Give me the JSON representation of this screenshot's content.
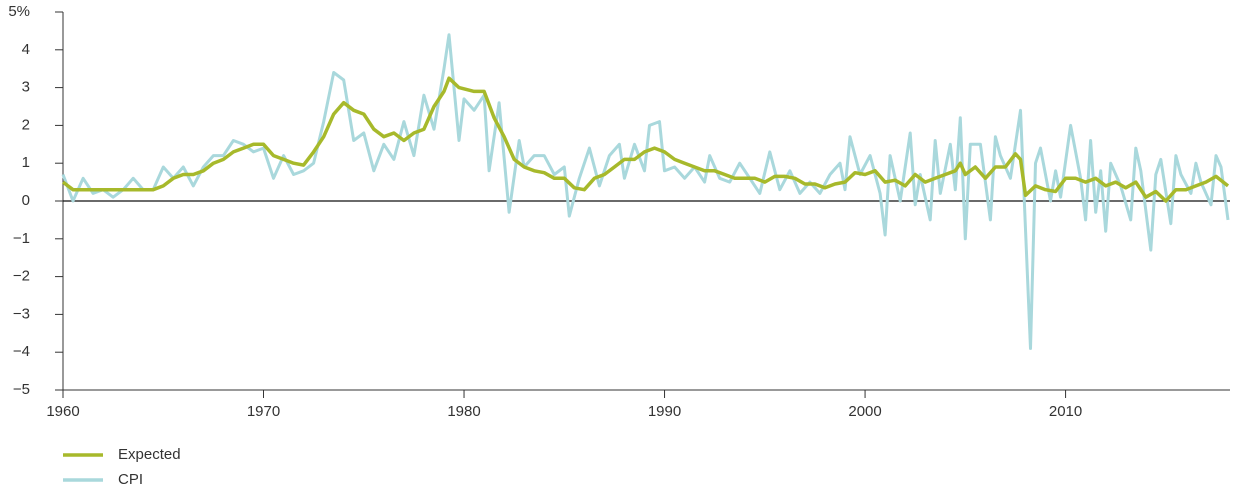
{
  "chart_data": {
    "type": "line",
    "xlim": [
      1960,
      2018.2
    ],
    "xticks": [
      1960,
      1970,
      1980,
      1990,
      2000,
      2010
    ],
    "ylim": [
      -5,
      5
    ],
    "yticks": [
      {
        "value": -5,
        "label": "−5"
      },
      {
        "value": -4,
        "label": "−4"
      },
      {
        "value": -3,
        "label": "−3"
      },
      {
        "value": -2,
        "label": "−2"
      },
      {
        "value": -1,
        "label": "−1"
      },
      0,
      1,
      2,
      3,
      4,
      {
        "value": 5,
        "label": "5%"
      }
    ],
    "legend": "bottom-left",
    "series": [
      {
        "name": "CPI",
        "color": "#a9d8dc",
        "x": [
          1960,
          1960.5,
          1961,
          1961.5,
          1962,
          1962.5,
          1963,
          1963.5,
          1964,
          1964.5,
          1965,
          1965.5,
          1966,
          1966.5,
          1967,
          1967.5,
          1968,
          1968.5,
          1969,
          1969.5,
          1970,
          1970.5,
          1971,
          1971.5,
          1972,
          1972.5,
          1973,
          1973.5,
          1974,
          1974.5,
          1975,
          1975.5,
          1976,
          1976.5,
          1977,
          1977.5,
          1978,
          1978.5,
          1979,
          1979.25,
          1979.75,
          1980,
          1980.5,
          1981,
          1981.25,
          1981.75,
          1982.25,
          1982.75,
          1983,
          1983.5,
          1984,
          1984.5,
          1985,
          1985.25,
          1985.75,
          1986.25,
          1986.75,
          1987.25,
          1987.75,
          1988,
          1988.5,
          1989,
          1989.25,
          1989.75,
          1990,
          1990.5,
          1991,
          1991.5,
          1992,
          1992.25,
          1992.75,
          1993.25,
          1993.75,
          1994.25,
          1994.75,
          1995.25,
          1995.75,
          1996.25,
          1996.75,
          1997.25,
          1997.75,
          1998.25,
          1998.75,
          1999,
          1999.25,
          1999.75,
          2000.25,
          2000.75,
          2001,
          2001.25,
          2001.75,
          2002.25,
          2002.5,
          2002.75,
          2003.25,
          2003.5,
          2003.75,
          2004.25,
          2004.5,
          2004.75,
          2005,
          2005.25,
          2005.75,
          2006.25,
          2006.5,
          2006.75,
          2007.25,
          2007.75,
          2008.25,
          2008.5,
          2008.75,
          2009.25,
          2009.5,
          2009.75,
          2010.25,
          2010.75,
          2011,
          2011.25,
          2011.5,
          2011.75,
          2012,
          2012.25,
          2012.75,
          2013.25,
          2013.5,
          2013.75,
          2014.25,
          2014.5,
          2014.75,
          2015.25,
          2015.5,
          2015.75,
          2016.25,
          2016.5,
          2016.75,
          2017.25,
          2017.5,
          2017.75,
          2018.1
        ],
        "values": [
          0.7,
          0.0,
          0.6,
          0.2,
          0.3,
          0.1,
          0.3,
          0.6,
          0.3,
          0.3,
          0.9,
          0.6,
          0.9,
          0.4,
          0.9,
          1.2,
          1.2,
          1.6,
          1.5,
          1.3,
          1.4,
          0.6,
          1.2,
          0.7,
          0.8,
          1.0,
          2.1,
          3.4,
          3.2,
          1.6,
          1.8,
          0.8,
          1.5,
          1.1,
          2.1,
          1.2,
          2.8,
          1.9,
          3.5,
          4.4,
          1.6,
          2.7,
          2.4,
          2.8,
          0.8,
          2.6,
          -0.3,
          1.6,
          0.9,
          1.2,
          1.2,
          0.7,
          0.9,
          -0.4,
          0.6,
          1.4,
          0.4,
          1.2,
          1.5,
          0.6,
          1.5,
          0.8,
          2.0,
          2.1,
          0.8,
          0.9,
          0.6,
          0.9,
          0.5,
          1.2,
          0.6,
          0.5,
          1.0,
          0.6,
          0.2,
          1.3,
          0.3,
          0.8,
          0.2,
          0.5,
          0.2,
          0.7,
          1.0,
          0.3,
          1.7,
          0.7,
          1.2,
          0.2,
          -0.9,
          1.2,
          0.0,
          1.8,
          -0.1,
          0.7,
          -0.5,
          1.6,
          0.2,
          1.5,
          0.3,
          2.2,
          -1.0,
          1.5,
          1.5,
          -0.5,
          1.7,
          1.2,
          0.6,
          2.4,
          -3.9,
          1.0,
          1.4,
          0.0,
          0.8,
          0.1,
          2.0,
          0.6,
          -0.5,
          1.6,
          -0.3,
          0.8,
          -0.8,
          1.0,
          0.4,
          -0.5,
          1.4,
          0.8,
          -1.3,
          0.7,
          1.1,
          -0.6,
          1.2,
          0.7,
          0.2,
          1.0,
          0.5,
          -0.1,
          1.2,
          0.9,
          -0.5
        ]
      },
      {
        "name": "Expected",
        "color": "#a7b92b",
        "x": [
          1960,
          1960.5,
          1961,
          1961.5,
          1962,
          1962.5,
          1963,
          1963.5,
          1964,
          1964.5,
          1965,
          1965.5,
          1966,
          1966.5,
          1967,
          1967.5,
          1968,
          1968.5,
          1969,
          1969.5,
          1970,
          1970.5,
          1971,
          1971.5,
          1972,
          1972.5,
          1973,
          1973.5,
          1974,
          1974.5,
          1975,
          1975.5,
          1976,
          1976.5,
          1977,
          1977.5,
          1978,
          1978.5,
          1979,
          1979.25,
          1979.75,
          1980.5,
          1981,
          1981.5,
          1982,
          1982.5,
          1983,
          1983.5,
          1984,
          1984.5,
          1985,
          1985.5,
          1986,
          1986.5,
          1987,
          1987.5,
          1988,
          1988.5,
          1989,
          1989.5,
          1990,
          1990.5,
          1991,
          1991.5,
          1992,
          1992.5,
          1993,
          1993.5,
          1994,
          1994.5,
          1995,
          1995.5,
          1996,
          1996.5,
          1997,
          1997.5,
          1998,
          1998.5,
          1999,
          1999.5,
          2000,
          2000.5,
          2001,
          2001.5,
          2002,
          2002.5,
          2003,
          2003.5,
          2004,
          2004.5,
          2004.75,
          2005,
          2005.5,
          2006,
          2006.5,
          2007,
          2007.5,
          2007.75,
          2008,
          2008.5,
          2009,
          2009.5,
          2010,
          2010.5,
          2011,
          2011.5,
          2012,
          2012.5,
          2013,
          2013.5,
          2014,
          2014.5,
          2015,
          2015.5,
          2016,
          2016.5,
          2017,
          2017.5,
          2018.1
        ],
        "values": [
          0.5,
          0.3,
          0.3,
          0.3,
          0.3,
          0.3,
          0.3,
          0.3,
          0.3,
          0.3,
          0.4,
          0.6,
          0.7,
          0.7,
          0.8,
          1.0,
          1.1,
          1.3,
          1.4,
          1.5,
          1.5,
          1.2,
          1.1,
          1.0,
          0.95,
          1.3,
          1.7,
          2.3,
          2.6,
          2.4,
          2.3,
          1.9,
          1.7,
          1.8,
          1.6,
          1.8,
          1.9,
          2.5,
          2.9,
          3.25,
          3.0,
          2.9,
          2.9,
          2.2,
          1.7,
          1.1,
          0.9,
          0.8,
          0.75,
          0.6,
          0.6,
          0.35,
          0.3,
          0.6,
          0.7,
          0.9,
          1.1,
          1.1,
          1.3,
          1.4,
          1.3,
          1.1,
          1.0,
          0.9,
          0.8,
          0.8,
          0.7,
          0.6,
          0.6,
          0.6,
          0.5,
          0.65,
          0.65,
          0.6,
          0.45,
          0.45,
          0.35,
          0.45,
          0.5,
          0.75,
          0.7,
          0.8,
          0.5,
          0.55,
          0.4,
          0.7,
          0.5,
          0.6,
          0.7,
          0.8,
          1.0,
          0.7,
          0.9,
          0.6,
          0.9,
          0.9,
          1.25,
          1.1,
          0.15,
          0.4,
          0.3,
          0.25,
          0.6,
          0.6,
          0.5,
          0.6,
          0.4,
          0.5,
          0.35,
          0.5,
          0.1,
          0.25,
          0.0,
          0.3,
          0.3,
          0.4,
          0.5,
          0.65,
          0.4
        ]
      }
    ]
  }
}
